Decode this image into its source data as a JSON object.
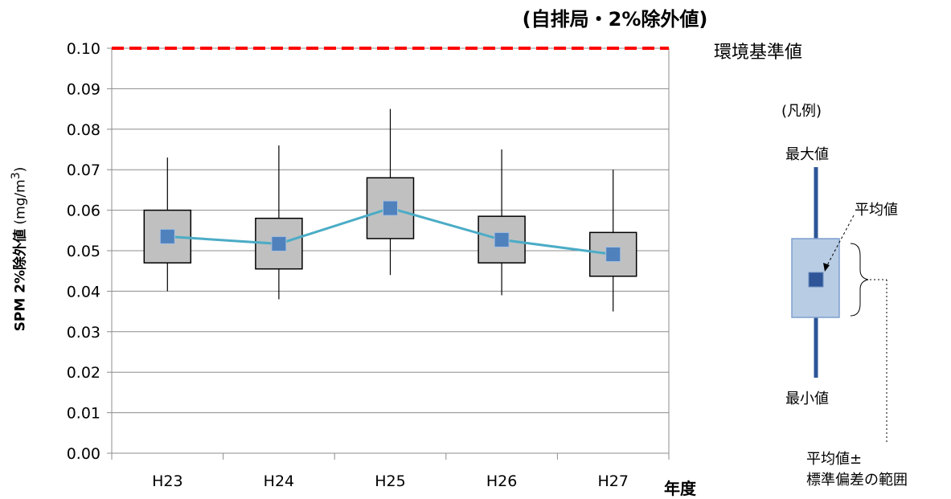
{
  "chart_data": {
    "type": "box",
    "title": "(自排局・2%除外値)",
    "ylabel_main": "SPM 2%除外値",
    "ylabel_unit": "(mg/m",
    "ylabel_sup": "3",
    "ylabel_close": ")",
    "xlabel": "年度",
    "ylim": [
      0,
      0.1
    ],
    "yticks": [
      "0.00",
      "0.01",
      "0.02",
      "0.03",
      "0.04",
      "0.05",
      "0.06",
      "0.07",
      "0.08",
      "0.09",
      "0.10"
    ],
    "categories": [
      "H23",
      "H24",
      "H25",
      "H26",
      "H27"
    ],
    "max": [
      0.073,
      0.076,
      0.085,
      0.075,
      0.07
    ],
    "box_high": [
      0.06,
      0.058,
      0.068,
      0.0585,
      0.0545
    ],
    "mean": [
      0.0535,
      0.0517,
      0.0605,
      0.0527,
      0.0491
    ],
    "box_low": [
      0.047,
      0.0455,
      0.053,
      0.047,
      0.0437
    ],
    "min": [
      0.04,
      0.038,
      0.044,
      0.039,
      0.035
    ],
    "reference_line": {
      "value": 0.1,
      "label": "環境基準値",
      "color": "#ff0000"
    },
    "grid": true,
    "colors": {
      "box": "#c0c0c0",
      "mean_marker": "#4f81bd",
      "mean_line": "#4bacc6"
    }
  },
  "legend": {
    "title": "(凡例)",
    "max_label": "最大値",
    "min_label": "最小値",
    "mean_label": "平均値",
    "range_line1": "平均値±",
    "range_line2": "標準偏差の範囲",
    "colors": {
      "whisker": "#2e5597",
      "box": "#b8cce4",
      "box_border": "#7f9fcf",
      "marker": "#2e5597"
    }
  }
}
